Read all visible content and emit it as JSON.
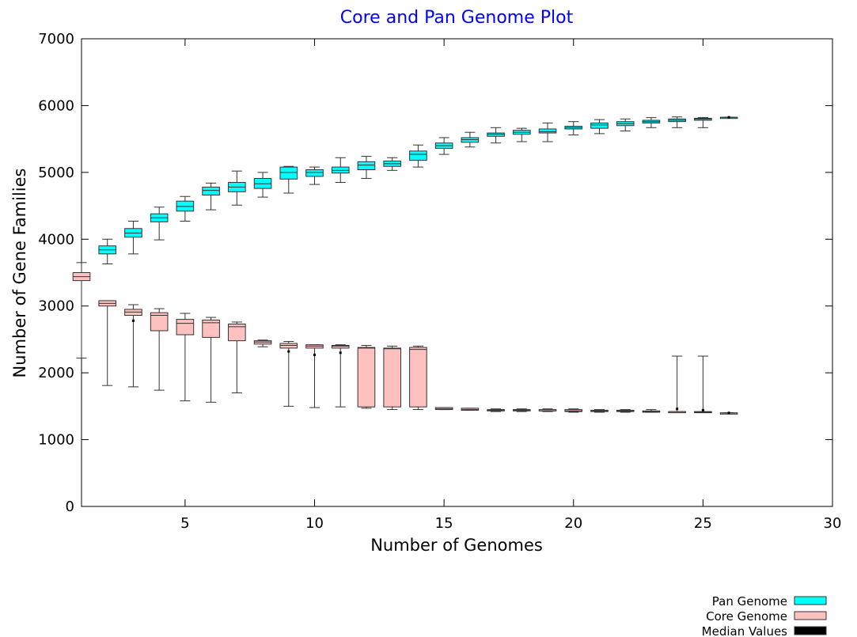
{
  "chart_data": {
    "type": "boxplot",
    "title": "Core and Pan Genome Plot",
    "xlabel": "Number of Genomes",
    "ylabel": "Number of Gene Families",
    "xlim": [
      1,
      30
    ],
    "ylim": [
      0,
      7000
    ],
    "x_ticks": [
      5,
      10,
      15,
      20,
      25,
      30
    ],
    "y_ticks": [
      0,
      1000,
      2000,
      3000,
      4000,
      5000,
      6000,
      7000
    ],
    "grid": false,
    "legend_position": "bottom-right",
    "colors": {
      "title": "#0000ff",
      "pan_fill": "#00ffff",
      "core_fill": "#ffc0c0",
      "median_values": "#000000",
      "box_stroke": "#333333"
    },
    "legend": [
      "Pan Genome",
      "Core Genome",
      "Median Values"
    ],
    "series": [
      {
        "name": "Pan Genome",
        "boxes": [
          {
            "x": 2,
            "min": 3630,
            "q1": 3780,
            "median": 3840,
            "q3": 3900,
            "max": 4000
          },
          {
            "x": 3,
            "min": 3780,
            "q1": 4030,
            "median": 4090,
            "q3": 4160,
            "max": 4270
          },
          {
            "x": 4,
            "min": 3990,
            "q1": 4260,
            "median": 4320,
            "q3": 4380,
            "max": 4480
          },
          {
            "x": 5,
            "min": 4270,
            "q1": 4420,
            "median": 4490,
            "q3": 4570,
            "max": 4640
          },
          {
            "x": 6,
            "min": 4440,
            "q1": 4660,
            "median": 4730,
            "q3": 4780,
            "max": 4840
          },
          {
            "x": 7,
            "min": 4510,
            "q1": 4710,
            "median": 4780,
            "q3": 4850,
            "max": 5020
          },
          {
            "x": 8,
            "min": 4630,
            "q1": 4760,
            "median": 4830,
            "q3": 4910,
            "max": 5000
          },
          {
            "x": 9,
            "min": 4690,
            "q1": 4900,
            "median": 5000,
            "q3": 5080,
            "max": 5090
          },
          {
            "x": 10,
            "min": 4820,
            "q1": 4940,
            "median": 5000,
            "q3": 5040,
            "max": 5080
          },
          {
            "x": 11,
            "min": 4850,
            "q1": 4990,
            "median": 5030,
            "q3": 5080,
            "max": 5220
          },
          {
            "x": 12,
            "min": 4910,
            "q1": 5040,
            "median": 5110,
            "q3": 5160,
            "max": 5240
          },
          {
            "x": 13,
            "min": 5030,
            "q1": 5090,
            "median": 5130,
            "q3": 5170,
            "max": 5220
          },
          {
            "x": 14,
            "min": 5080,
            "q1": 5180,
            "median": 5270,
            "q3": 5320,
            "max": 5410
          },
          {
            "x": 15,
            "min": 5270,
            "q1": 5360,
            "median": 5400,
            "q3": 5440,
            "max": 5520
          },
          {
            "x": 16,
            "min": 5380,
            "q1": 5450,
            "median": 5490,
            "q3": 5520,
            "max": 5600
          },
          {
            "x": 17,
            "min": 5440,
            "q1": 5540,
            "median": 5570,
            "q3": 5590,
            "max": 5670
          },
          {
            "x": 18,
            "min": 5460,
            "q1": 5570,
            "median": 5600,
            "q3": 5630,
            "max": 5660
          },
          {
            "x": 19,
            "min": 5460,
            "q1": 5590,
            "median": 5610,
            "q3": 5650,
            "max": 5740
          },
          {
            "x": 20,
            "min": 5560,
            "q1": 5650,
            "median": 5670,
            "q3": 5690,
            "max": 5760
          },
          {
            "x": 21,
            "min": 5580,
            "q1": 5660,
            "median": 5710,
            "q3": 5740,
            "max": 5790
          },
          {
            "x": 22,
            "min": 5620,
            "q1": 5700,
            "median": 5730,
            "q3": 5760,
            "max": 5800
          },
          {
            "x": 23,
            "min": 5670,
            "q1": 5740,
            "median": 5760,
            "q3": 5780,
            "max": 5820
          },
          {
            "x": 24,
            "min": 5670,
            "q1": 5760,
            "median": 5780,
            "q3": 5800,
            "max": 5830
          },
          {
            "x": 25,
            "min": 5670,
            "q1": 5780,
            "median": 5800,
            "q3": 5810,
            "max": 5820
          },
          {
            "x": 26,
            "min": 5825,
            "q1": 5825,
            "median": 5825,
            "q3": 5825,
            "max": 5825
          }
        ]
      },
      {
        "name": "Core Genome",
        "boxes": [
          {
            "x": 1,
            "min": 2220,
            "q1": 3380,
            "median": 3440,
            "q3": 3500,
            "max": 3650
          },
          {
            "x": 2,
            "min": 1810,
            "q1": 3000,
            "median": 3040,
            "q3": 3080,
            "max": 3080
          },
          {
            "x": 3,
            "min": 1790,
            "q1": 2860,
            "median": 2910,
            "q3": 2950,
            "max": 3020
          },
          {
            "x": 4,
            "min": 1740,
            "q1": 2630,
            "median": 2860,
            "q3": 2900,
            "max": 2960
          },
          {
            "x": 5,
            "min": 1580,
            "q1": 2570,
            "median": 2740,
            "q3": 2800,
            "max": 2890
          },
          {
            "x": 6,
            "min": 1560,
            "q1": 2530,
            "median": 2750,
            "q3": 2790,
            "max": 2830
          },
          {
            "x": 7,
            "min": 1700,
            "q1": 2480,
            "median": 2690,
            "q3": 2730,
            "max": 2760
          },
          {
            "x": 8,
            "min": 2390,
            "q1": 2430,
            "median": 2460,
            "q3": 2480,
            "max": 2490
          },
          {
            "x": 9,
            "min": 1500,
            "q1": 2370,
            "median": 2410,
            "q3": 2440,
            "max": 2470
          },
          {
            "x": 10,
            "min": 1480,
            "q1": 2370,
            "median": 2400,
            "q3": 2420,
            "max": 2420
          },
          {
            "x": 11,
            "min": 1490,
            "q1": 2370,
            "median": 2400,
            "q3": 2410,
            "max": 2420
          },
          {
            "x": 12,
            "min": 1470,
            "q1": 1490,
            "median": 2370,
            "q3": 2380,
            "max": 2410
          },
          {
            "x": 13,
            "min": 1450,
            "q1": 1490,
            "median": 2360,
            "q3": 2370,
            "max": 2400
          },
          {
            "x": 14,
            "min": 1450,
            "q1": 1490,
            "median": 2350,
            "q3": 2380,
            "max": 2400
          },
          {
            "x": 15,
            "min": 1450,
            "q1": 1450,
            "median": 1460,
            "q3": 1480,
            "max": 1480
          },
          {
            "x": 16,
            "min": 1440,
            "q1": 1440,
            "median": 1450,
            "q3": 1470,
            "max": 1470
          },
          {
            "x": 17,
            "min": 1420,
            "q1": 1430,
            "median": 1440,
            "q3": 1450,
            "max": 1460
          },
          {
            "x": 18,
            "min": 1420,
            "q1": 1430,
            "median": 1440,
            "q3": 1450,
            "max": 1460
          },
          {
            "x": 19,
            "min": 1420,
            "q1": 1430,
            "median": 1430,
            "q3": 1450,
            "max": 1460
          },
          {
            "x": 20,
            "min": 1410,
            "q1": 1420,
            "median": 1430,
            "q3": 1450,
            "max": 1460
          },
          {
            "x": 21,
            "min": 1410,
            "q1": 1420,
            "median": 1430,
            "q3": 1440,
            "max": 1450
          },
          {
            "x": 22,
            "min": 1410,
            "q1": 1420,
            "median": 1430,
            "q3": 1440,
            "max": 1450
          },
          {
            "x": 23,
            "min": 1410,
            "q1": 1410,
            "median": 1420,
            "q3": 1430,
            "max": 1450
          },
          {
            "x": 24,
            "min": 1410,
            "q1": 1410,
            "median": 1420,
            "q3": 1420,
            "max": 2250
          },
          {
            "x": 25,
            "min": 1410,
            "q1": 1410,
            "median": 1410,
            "q3": 1420,
            "max": 2250
          },
          {
            "x": 26,
            "min": 1400,
            "q1": 1400,
            "median": 1400,
            "q3": 1400,
            "max": 1400
          }
        ]
      },
      {
        "name": "Median Values",
        "points": [
          {
            "x": 3,
            "y": 2780
          },
          {
            "x": 9,
            "y": 2320
          },
          {
            "x": 10,
            "y": 2270
          },
          {
            "x": 11,
            "y": 2300
          },
          {
            "x": 24,
            "y": 1460
          },
          {
            "x": 25,
            "y": 1440
          },
          {
            "x": 26,
            "y": 5825
          },
          {
            "x": 26,
            "y": 1400
          }
        ]
      }
    ]
  }
}
